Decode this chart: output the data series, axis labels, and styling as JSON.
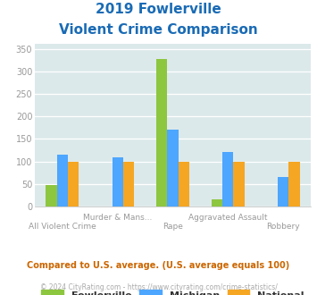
{
  "title_line1": "2019 Fowlerville",
  "title_line2": "Violent Crime Comparison",
  "categories": [
    "All Violent Crime",
    "Murder & Mans...",
    "Rape",
    "Aggravated Assault",
    "Robbery"
  ],
  "series": {
    "Fowlerville": [
      47,
      0,
      328,
      15,
      0
    ],
    "Michigan": [
      115,
      110,
      170,
      121,
      65
    ],
    "National": [
      100,
      99,
      99,
      99,
      100
    ]
  },
  "colors": {
    "Fowlerville": "#8dc63f",
    "Michigan": "#4da6ff",
    "National": "#f5a623"
  },
  "ylim": [
    0,
    360
  ],
  "yticks": [
    0,
    50,
    100,
    150,
    200,
    250,
    300,
    350
  ],
  "bg_color": "#dce9ea",
  "title_color": "#1a6bb5",
  "axis_label_color": "#999999",
  "footer_text": "Compared to U.S. average. (U.S. average equals 100)",
  "copyright_text": "© 2024 CityRating.com - https://www.cityrating.com/crime-statistics/",
  "footer_color": "#cc6600",
  "copyright_color": "#aaaaaa"
}
